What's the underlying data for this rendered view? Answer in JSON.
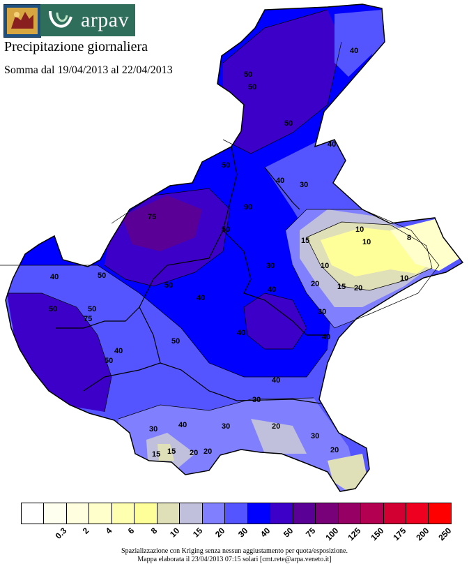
{
  "header": {
    "logo_text": "arpav",
    "title": "Precipitazione giornaliera",
    "subtitle": "Somma dal 19/04/2013 al 22/04/2013"
  },
  "legend": {
    "colors": [
      "#ffffff",
      "#fffff0",
      "#ffffe0",
      "#ffffcc",
      "#ffffb0",
      "#ffff99",
      "#e0e0b8",
      "#c0c0dc",
      "#8080ff",
      "#5555ff",
      "#0000ff",
      "#3d00c8",
      "#5a0096",
      "#780078",
      "#960064",
      "#b40050",
      "#d20032",
      "#f00020",
      "#ff0000"
    ],
    "labels": [
      "0.3",
      "2",
      "4",
      "6",
      "8",
      "10",
      "15",
      "20",
      "30",
      "40",
      "50",
      "75",
      "100",
      "125",
      "150",
      "175",
      "200",
      "250"
    ]
  },
  "footer": {
    "line1": "Spazializzazione con Kriging senza nessun aggiustamento per quota/esposizione.",
    "line2": "Mappa elaborata il 23/04/2013 07:15 solari [cmt.rete@arpa.veneto.it]"
  },
  "map_labels": [
    "50",
    "40",
    "50",
    "50",
    "50",
    "40",
    "40",
    "30",
    "10",
    "90",
    "50",
    "75",
    "50",
    "40",
    "30",
    "15",
    "20",
    "10",
    "8",
    "10",
    "10",
    "15",
    "20",
    "50",
    "40",
    "50",
    "75",
    "50",
    "50",
    "40",
    "50",
    "40",
    "40",
    "30",
    "40",
    "40",
    "20",
    "30",
    "30",
    "20",
    "15",
    "30",
    "20",
    "30",
    "20",
    "15",
    "40"
  ]
}
